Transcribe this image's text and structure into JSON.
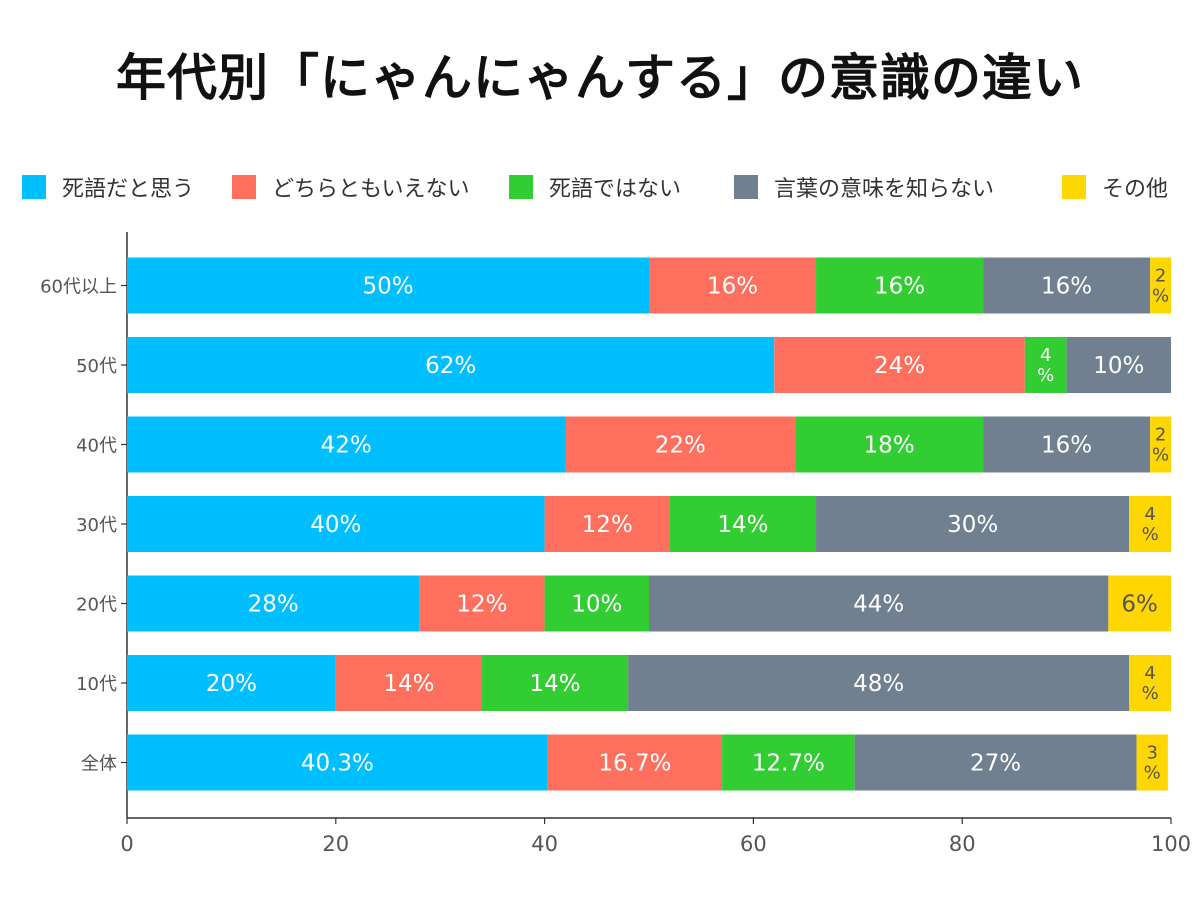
{
  "title": "年代別「にゃんにゃんする」の意識の違い",
  "chart_data": {
    "type": "bar",
    "orientation": "horizontal",
    "stacked": true,
    "title": "年代別「にゃんにゃんする」の意識の違い",
    "xlabel": "",
    "ylabel": "",
    "xlim": [
      0,
      100
    ],
    "x_ticks": [
      0,
      20,
      40,
      60,
      80,
      100
    ],
    "legend_position": "top",
    "categories": [
      "60代以上",
      "50代",
      "40代",
      "30代",
      "20代",
      "10代",
      "全体"
    ],
    "series": [
      {
        "name": "死語だと思う",
        "color": "#00BFFF",
        "values": [
          50,
          62,
          42,
          40,
          28,
          20,
          40.3
        ],
        "labels": [
          "50%",
          "62%",
          "42%",
          "40%",
          "28%",
          "20%",
          "40.3%"
        ]
      },
      {
        "name": "どちらともいえない",
        "color": "#FF6F5E",
        "values": [
          16,
          24,
          22,
          12,
          12,
          14,
          16.7
        ],
        "labels": [
          "16%",
          "24%",
          "22%",
          "12%",
          "12%",
          "14%",
          "16.7%"
        ]
      },
      {
        "name": "死語ではない",
        "color": "#32CD32",
        "values": [
          16,
          4,
          18,
          14,
          10,
          14,
          12.7
        ],
        "labels": [
          "16%",
          "4\n%",
          "18%",
          "14%",
          "10%",
          "14%",
          "12.7%"
        ]
      },
      {
        "name": "言葉の意味を知らない",
        "color": "#708090",
        "values": [
          16,
          10,
          16,
          30,
          44,
          48,
          27
        ],
        "labels": [
          "16%",
          "10%",
          "16%",
          "30%",
          "44%",
          "48%",
          "27%"
        ]
      },
      {
        "name": "その他",
        "color": "#FFD700",
        "values": [
          2,
          0,
          2,
          4,
          6,
          4,
          3
        ],
        "labels": [
          "2\n%",
          "",
          "2\n%",
          "4\n%",
          "6%",
          "4\n%",
          "3\n%"
        ]
      }
    ]
  }
}
